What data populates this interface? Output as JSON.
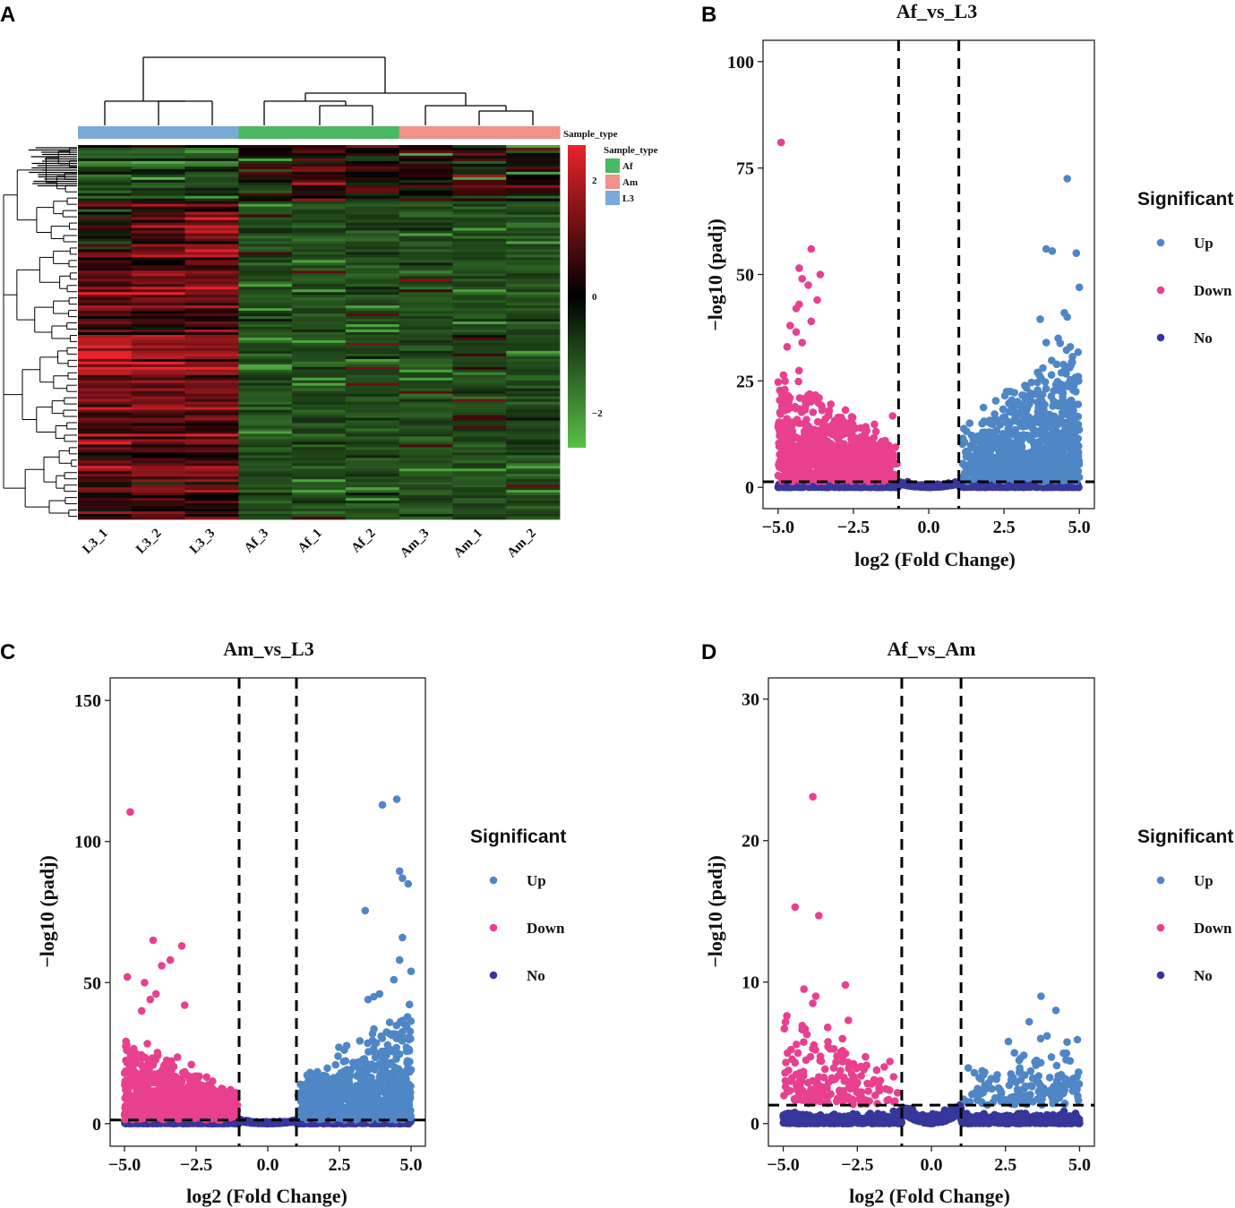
{
  "panels": {
    "A": "A",
    "B": "B",
    "C": "C",
    "D": "D"
  },
  "colors": {
    "up": "#4f86c6",
    "down": "#e8408f",
    "no": "#37369a",
    "Af": "#49b863",
    "Am": "#f0918a",
    "L3": "#7aaad8",
    "heat_high": "#e8242b",
    "heat_mid": "#000000",
    "heat_low": "#59c148"
  },
  "chart_data": [
    {
      "type": "heatmap",
      "panel": "A",
      "samples": [
        "L3_1",
        "L3_2",
        "L3_3",
        "Af_3",
        "Af_1",
        "Af_2",
        "Am_3",
        "Am_1",
        "Am_2"
      ],
      "groups": [
        "L3",
        "L3",
        "L3",
        "Af",
        "Af",
        "Af",
        "Am",
        "Am",
        "Am"
      ],
      "annotation_title": "Sample_type",
      "legend_title": "Sample_type",
      "legend_entries": [
        "Af",
        "Am",
        "L3"
      ],
      "colorbar_ticks": [
        2,
        0,
        -2
      ],
      "colorbar_tick_labels": [
        "2",
        "0",
        "−2"
      ],
      "scale_range": [
        -2.6,
        2.6
      ]
    },
    {
      "type": "scatter",
      "panel": "B",
      "title": "Af_vs_L3",
      "xlabel": "log2 (Fold Change)",
      "ylabel": "−log10 (padj)",
      "xlim": [
        -5.5,
        5.5
      ],
      "ylim": [
        -5,
        105
      ],
      "xticks": [
        -5.0,
        -2.5,
        0.0,
        2.5,
        5.0
      ],
      "xtick_labels": [
        "−5.0",
        "−2.5",
        "0.0",
        "2.5",
        "5.0"
      ],
      "yticks": [
        0,
        25,
        50,
        75,
        100
      ],
      "ytick_labels": [
        "0",
        "25",
        "50",
        "75",
        "100"
      ],
      "vlines": [
        -1,
        1
      ],
      "hline": 1.3,
      "legend_title": "Significant",
      "legend_entries": [
        "Up",
        "Down",
        "No"
      ],
      "series": [
        {
          "name": "Up",
          "color_key": "up",
          "n_points": 900,
          "max_y": 30,
          "tail": 5,
          "points": [
            [
              4.6,
              72.5
            ],
            [
              4.9,
              55
            ],
            [
              3.9,
              56
            ],
            [
              4.1,
              55.5
            ],
            [
              5.0,
              47
            ],
            [
              4.5,
              41
            ],
            [
              4.6,
              40
            ],
            [
              3.7,
              39.5
            ],
            [
              4.3,
              35
            ],
            [
              3.9,
              34
            ],
            [
              4.7,
              33
            ]
          ]
        },
        {
          "name": "Down",
          "color_key": "down",
          "n_points": 900,
          "max_y": 22,
          "tail": 5,
          "points": [
            [
              -4.9,
              81
            ],
            [
              -3.9,
              56
            ],
            [
              -4.3,
              51.5
            ],
            [
              -4.2,
              49
            ],
            [
              -3.6,
              50
            ],
            [
              -4.0,
              47.5
            ],
            [
              -3.7,
              44
            ],
            [
              -4.3,
              43
            ],
            [
              -4.4,
              42
            ],
            [
              -3.9,
              39
            ],
            [
              -4.6,
              38
            ],
            [
              -4.4,
              36.5
            ],
            [
              -4.2,
              34
            ],
            [
              -4.7,
              33
            ]
          ]
        },
        {
          "name": "No",
          "color_key": "no",
          "n_points": 1100,
          "max_y": 3.5,
          "tail": 0.8,
          "points": []
        }
      ]
    },
    {
      "type": "scatter",
      "panel": "C",
      "title": "Am_vs_L3",
      "xlabel": "log2 (Fold Change)",
      "ylabel": "−log10 (padj)",
      "xlim": [
        -5.5,
        5.5
      ],
      "ylim": [
        -8,
        158
      ],
      "xticks": [
        -5.0,
        -2.5,
        0.0,
        2.5,
        5.0
      ],
      "xtick_labels": [
        "−5.0",
        "−2.5",
        "0.0",
        "2.5",
        "5.0"
      ],
      "yticks": [
        0,
        50,
        100,
        150
      ],
      "ytick_labels": [
        "0",
        "50",
        "100",
        "150"
      ],
      "vlines": [
        -1,
        1
      ],
      "hline": 1.3,
      "legend_title": "Significant",
      "legend_entries": [
        "Up",
        "Down",
        "No"
      ],
      "series": [
        {
          "name": "Up",
          "color_key": "up",
          "n_points": 800,
          "max_y": 35,
          "tail": 7,
          "points": [
            [
              4.5,
              115
            ],
            [
              4.0,
              113
            ],
            [
              4.6,
              89.5
            ],
            [
              4.7,
              87
            ],
            [
              4.9,
              85
            ],
            [
              3.4,
              75.5
            ],
            [
              4.7,
              66
            ],
            [
              4.4,
              51
            ],
            [
              5.0,
              54
            ],
            [
              4.6,
              58
            ],
            [
              3.9,
              46
            ],
            [
              3.7,
              45
            ],
            [
              3.5,
              44
            ]
          ]
        },
        {
          "name": "Down",
          "color_key": "down",
          "n_points": 800,
          "max_y": 25,
          "tail": 5.5,
          "points": [
            [
              -4.8,
              110.5
            ],
            [
              -4.0,
              65
            ],
            [
              -3.0,
              63
            ],
            [
              -4.9,
              52
            ],
            [
              -3.7,
              56
            ],
            [
              -3.4,
              58
            ],
            [
              -4.3,
              50
            ],
            [
              -3.9,
              46
            ],
            [
              -2.9,
              42
            ],
            [
              -4.1,
              44
            ],
            [
              -4.4,
              40
            ]
          ]
        },
        {
          "name": "No",
          "color_key": "no",
          "n_points": 1000,
          "max_y": 4.5,
          "tail": 1.2,
          "points": []
        }
      ]
    },
    {
      "type": "scatter",
      "panel": "D",
      "title": "Af_vs_Am",
      "xlabel": "log2 (Fold Change)",
      "ylabel": "−log10 (padj)",
      "xlim": [
        -5.5,
        5.5
      ],
      "ylim": [
        -1.6,
        31.5
      ],
      "xticks": [
        -5.0,
        -2.5,
        0.0,
        2.5,
        5.0
      ],
      "xtick_labels": [
        "−5.0",
        "−2.5",
        "0.0",
        "2.5",
        "5.0"
      ],
      "yticks": [
        0,
        10,
        20,
        30
      ],
      "ytick_labels": [
        "0",
        "10",
        "20",
        "30"
      ],
      "vlines": [
        -1,
        1
      ],
      "hline": 1.3,
      "legend_title": "Significant",
      "legend_entries": [
        "Up",
        "Down",
        "No"
      ],
      "series": [
        {
          "name": "Up",
          "color_key": "up",
          "n_points": 150,
          "max_y": 4.5,
          "tail": 1.2,
          "points": [
            [
              3.7,
              9
            ],
            [
              4.2,
              8
            ],
            [
              3.3,
              7.2
            ],
            [
              2.6,
              5.8
            ],
            [
              3.9,
              6.2
            ],
            [
              2.8,
              5.0
            ],
            [
              3.0,
              4.6
            ],
            [
              4.6,
              2.8
            ],
            [
              4.8,
              2.7
            ]
          ]
        },
        {
          "name": "Down",
          "color_key": "down",
          "n_points": 180,
          "max_y": 5.5,
          "tail": 1.3,
          "points": [
            [
              -4.0,
              23.1
            ],
            [
              -4.6,
              15.3
            ],
            [
              -3.8,
              14.7
            ],
            [
              -4.3,
              9.5
            ],
            [
              -2.9,
              9.8
            ],
            [
              -3.9,
              9.0
            ],
            [
              -4.0,
              8.5
            ],
            [
              -2.8,
              7.3
            ],
            [
              -3.5,
              6.8
            ],
            [
              -3.0,
              6.0
            ],
            [
              -4.2,
              6.3
            ]
          ]
        },
        {
          "name": "No",
          "color_key": "no",
          "n_points": 1400,
          "max_y": 2.0,
          "tail": 0.55,
          "points": []
        }
      ]
    }
  ]
}
